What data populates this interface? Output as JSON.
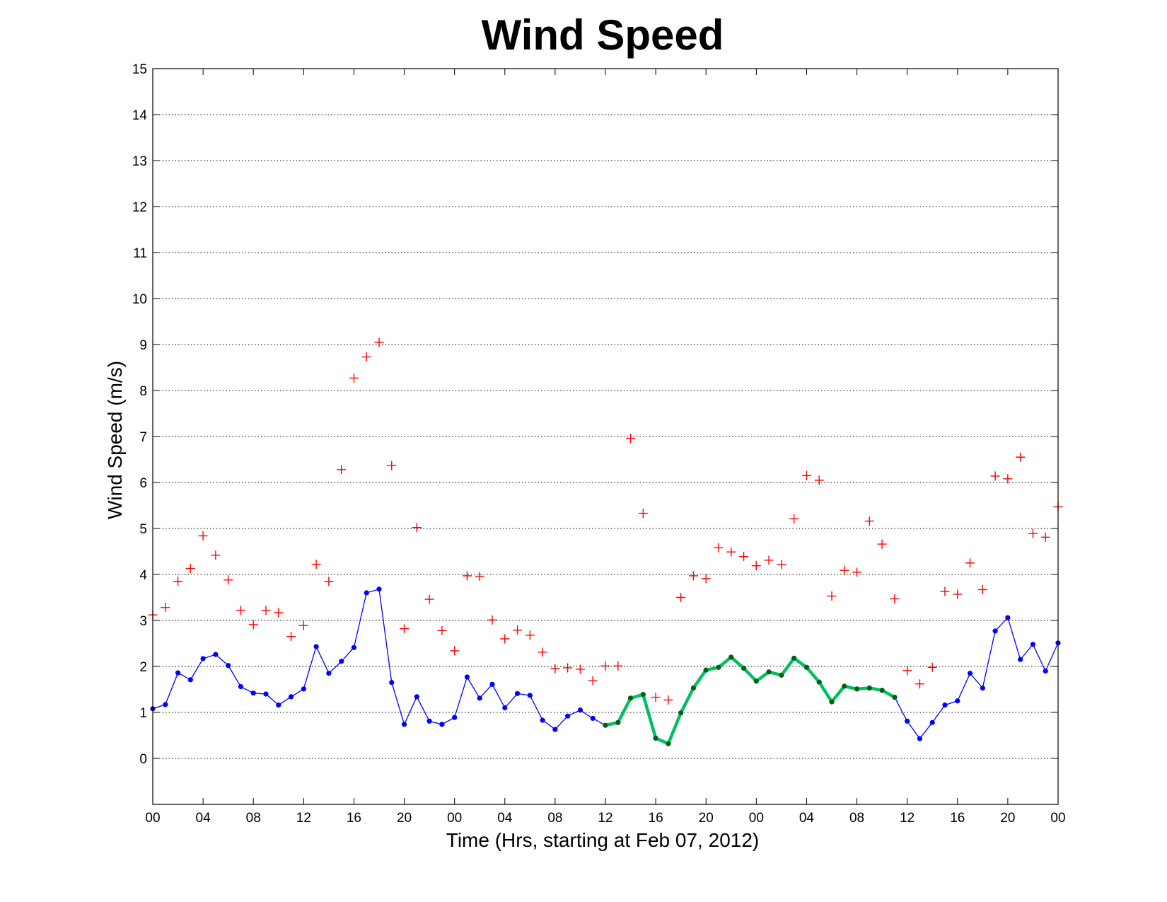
{
  "chart_data": {
    "type": "line",
    "title": "Wind Speed",
    "xlabel": "Time (Hrs, starting at Feb 07, 2012)",
    "ylabel": "Wind Speed (m/s)",
    "xlim": [
      0,
      72
    ],
    "ylim": [
      -1,
      15
    ],
    "yticks": [
      0,
      1,
      2,
      3,
      4,
      5,
      6,
      7,
      8,
      9,
      10,
      11,
      12,
      13,
      14,
      15
    ],
    "xticks": [
      0,
      4,
      8,
      12,
      16,
      20,
      24,
      28,
      32,
      36,
      40,
      44,
      48,
      52,
      56,
      60,
      64,
      68,
      72
    ],
    "xtick_labels": [
      "00",
      "04",
      "08",
      "12",
      "16",
      "20",
      "00",
      "04",
      "08",
      "12",
      "16",
      "20",
      "00",
      "04",
      "08",
      "12",
      "16",
      "20",
      "00"
    ],
    "grid": "y-dotted",
    "colors": {
      "line": "#0000ff",
      "highlight": "#00c060",
      "highlight_marker": "#006400",
      "gust": "#ff0000"
    },
    "series": [
      {
        "style": "line-dot",
        "x": [
          0,
          1,
          2,
          3,
          4,
          5,
          6,
          7,
          8,
          9,
          10,
          11,
          12,
          13,
          14,
          15,
          16,
          17,
          18,
          19,
          20,
          21,
          22,
          23,
          24,
          25,
          26,
          27,
          28,
          29,
          30,
          31,
          32,
          33,
          34,
          35,
          36,
          37,
          38,
          39,
          40,
          41,
          42,
          43,
          44,
          45,
          46,
          47,
          48,
          49,
          50,
          51,
          52,
          53,
          54,
          55,
          56,
          57,
          58,
          59,
          60,
          61,
          62,
          63,
          64,
          65,
          66,
          67,
          68,
          69,
          70,
          71,
          72
        ],
        "values": [
          1.08,
          1.17,
          1.86,
          1.71,
          2.17,
          2.26,
          2.02,
          1.56,
          1.42,
          1.4,
          1.16,
          1.34,
          1.51,
          2.43,
          1.85,
          2.11,
          2.41,
          3.6,
          3.68,
          1.65,
          0.74,
          1.34,
          0.81,
          0.74,
          0.89,
          1.77,
          1.31,
          1.61,
          1.1,
          1.41,
          1.37,
          0.83,
          0.63,
          0.92,
          1.05,
          0.87,
          0.72,
          0.78,
          1.31,
          1.39,
          0.44,
          0.32,
          0.99,
          1.53,
          1.92,
          1.98,
          2.2,
          1.96,
          1.68,
          1.88,
          1.81,
          2.18,
          1.98,
          1.66,
          1.23,
          1.57,
          1.51,
          1.53,
          1.48,
          1.33,
          0.81,
          0.43,
          0.78,
          1.16,
          1.25,
          1.85,
          1.53,
          2.77,
          3.06,
          2.15,
          2.48,
          1.9,
          2.51
        ]
      },
      {
        "style": "highlight-segment",
        "x": [
          36,
          37,
          38,
          39,
          40,
          41,
          42,
          43,
          44,
          45,
          46,
          47,
          48,
          49,
          50,
          51,
          52,
          53,
          54,
          55,
          56,
          57,
          58,
          59
        ],
        "values": [
          0.72,
          0.78,
          1.31,
          1.39,
          0.44,
          0.32,
          0.99,
          1.53,
          1.92,
          1.98,
          2.2,
          1.96,
          1.68,
          1.88,
          1.81,
          2.18,
          1.98,
          1.66,
          1.23,
          1.57,
          1.51,
          1.53,
          1.48,
          1.33
        ]
      },
      {
        "style": "plus-markers",
        "x": [
          0,
          1,
          2,
          3,
          4,
          5,
          6,
          7,
          8,
          9,
          10,
          11,
          12,
          13,
          14,
          15,
          16,
          17,
          18,
          19,
          20,
          21,
          22,
          23,
          24,
          25,
          26,
          27,
          28,
          29,
          30,
          31,
          32,
          33,
          34,
          35,
          36,
          37,
          38,
          39,
          40,
          41,
          42,
          43,
          44,
          45,
          46,
          47,
          48,
          49,
          50,
          51,
          52,
          53,
          54,
          55,
          56,
          57,
          58,
          59,
          60,
          61,
          62,
          63,
          64,
          65,
          66,
          67,
          68,
          69,
          70,
          71,
          72
        ],
        "values": [
          3.12,
          3.28,
          3.85,
          4.13,
          4.84,
          4.42,
          3.88,
          3.22,
          2.91,
          3.22,
          3.17,
          2.65,
          2.89,
          4.22,
          3.85,
          6.28,
          8.27,
          8.73,
          9.05,
          6.37,
          2.82,
          5.02,
          3.46,
          2.78,
          2.34,
          3.97,
          3.96,
          3.01,
          2.6,
          2.79,
          2.68,
          2.31,
          1.95,
          1.97,
          1.94,
          1.69,
          2.01,
          2.01,
          6.96,
          5.33,
          1.33,
          1.27,
          3.5,
          3.97,
          3.91,
          4.58,
          4.49,
          4.39,
          4.19,
          4.31,
          4.22,
          5.21,
          6.15,
          6.05,
          3.53,
          4.09,
          4.05,
          5.16,
          4.66,
          3.47,
          1.91,
          1.62,
          1.98,
          3.63,
          3.57,
          4.25,
          3.67,
          6.14,
          6.08,
          6.55,
          4.89,
          4.81,
          5.47
        ]
      }
    ]
  }
}
